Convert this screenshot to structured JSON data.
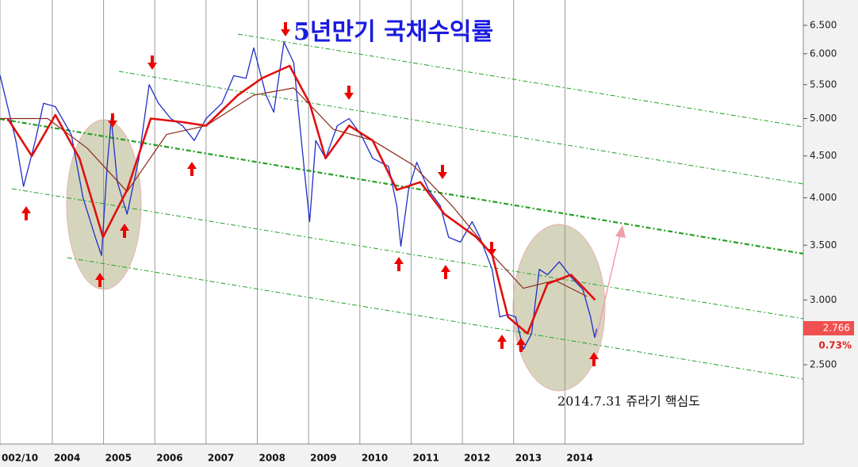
{
  "chart_data": {
    "type": "line",
    "title": "5년만기 국채수익률",
    "annotation": "2014.7.31 쥬라기 핵심도",
    "last_value": {
      "value": 2.766,
      "label": "2.766"
    },
    "change_label": "0.73%",
    "log_scale": true,
    "grid": true,
    "xlim": [
      2002.98,
      2018.65
    ],
    "xticks": [
      {
        "value": 2002.98,
        "label": "002/10"
      },
      2004,
      2005,
      2006,
      2007,
      2008,
      2009,
      2010,
      2011,
      2012,
      2013,
      2014
    ],
    "ylim": [
      2.0,
      6.98
    ],
    "yticks": [
      {
        "value": 2.5,
        "label": "2.500"
      },
      {
        "value": 3.0,
        "label": "3.000"
      },
      {
        "value": 3.5,
        "label": "3.500"
      },
      {
        "value": 4.0,
        "label": "4.000"
      },
      {
        "value": 4.5,
        "label": "4.500"
      },
      {
        "value": 5.0,
        "label": "5.000"
      },
      {
        "value": 5.5,
        "label": "5.500"
      },
      {
        "value": 6.0,
        "label": "6.000"
      },
      {
        "value": 6.5,
        "label": "6.500"
      }
    ],
    "series": [
      {
        "color": "#1f2fc8",
        "width": 1.3,
        "x": [
          2002.98,
          2003.29,
          2003.44,
          2003.67,
          2003.83,
          2004.06,
          2004.37,
          2004.6,
          2004.84,
          2004.96,
          2005.07,
          2005.15,
          2005.27,
          2005.46,
          2005.69,
          2005.89,
          2006.07,
          2006.31,
          2006.54,
          2006.77,
          2007.0,
          2007.31,
          2007.54,
          2007.78,
          2007.93,
          2008.17,
          2008.32,
          2008.52,
          2008.71,
          2008.83,
          2008.94,
          2009.02,
          2009.14,
          2009.33,
          2009.56,
          2009.79,
          2010.02,
          2010.25,
          2010.56,
          2010.72,
          2010.8,
          2010.95,
          2011.11,
          2011.34,
          2011.57,
          2011.73,
          2011.96,
          2012.19,
          2012.34,
          2012.58,
          2012.73,
          2012.89,
          2013.04,
          2013.19,
          2013.35,
          2013.5,
          2013.66,
          2013.89,
          2014.12,
          2014.35,
          2014.5,
          2014.58,
          2014.62
        ],
        "values": [
          5.65,
          4.7,
          4.13,
          4.7,
          5.22,
          5.17,
          4.78,
          4.0,
          3.58,
          3.4,
          4.37,
          5.0,
          4.18,
          3.82,
          4.47,
          5.5,
          5.22,
          5.0,
          4.9,
          4.7,
          5.0,
          5.22,
          5.64,
          5.6,
          6.1,
          5.34,
          5.09,
          6.2,
          5.85,
          4.9,
          4.18,
          3.74,
          4.7,
          4.47,
          4.9,
          5.0,
          4.78,
          4.47,
          4.37,
          3.91,
          3.49,
          4.09,
          4.42,
          4.09,
          3.91,
          3.58,
          3.53,
          3.74,
          3.58,
          3.27,
          2.86,
          2.88,
          2.86,
          2.61,
          2.73,
          3.27,
          3.22,
          3.34,
          3.2,
          3.09,
          2.86,
          2.7,
          2.766
        ]
      },
      {
        "color": "#e01010",
        "width": 2.6,
        "x": [
          2003.13,
          2003.6,
          2004.06,
          2004.53,
          2004.99,
          2005.46,
          2005.92,
          2006.54,
          2007.0,
          2007.62,
          2008.09,
          2008.63,
          2009.02,
          2009.33,
          2009.79,
          2010.25,
          2010.72,
          2011.18,
          2011.65,
          2012.27,
          2012.58,
          2012.89,
          2013.27,
          2013.66,
          2014.12,
          2014.59
        ],
        "values": [
          5.0,
          4.5,
          5.05,
          4.47,
          3.58,
          4.09,
          5.0,
          4.95,
          4.9,
          5.34,
          5.6,
          5.8,
          5.22,
          4.47,
          4.9,
          4.7,
          4.09,
          4.18,
          3.82,
          3.58,
          3.41,
          2.86,
          2.73,
          3.14,
          3.22,
          3.0
        ]
      },
      {
        "color": "#8b2a1a",
        "width": 1.2,
        "x": [
          2002.98,
          2003.91,
          2004.68,
          2005.46,
          2006.23,
          2007.0,
          2007.93,
          2008.71,
          2009.48,
          2010.25,
          2011.03,
          2011.8,
          2012.58,
          2013.19,
          2013.81,
          2014.43
        ],
        "values": [
          5.0,
          5.0,
          4.6,
          4.07,
          4.78,
          4.9,
          5.34,
          5.45,
          4.85,
          4.7,
          4.39,
          3.91,
          3.41,
          3.1,
          3.17,
          3.03
        ]
      }
    ]
  }
}
